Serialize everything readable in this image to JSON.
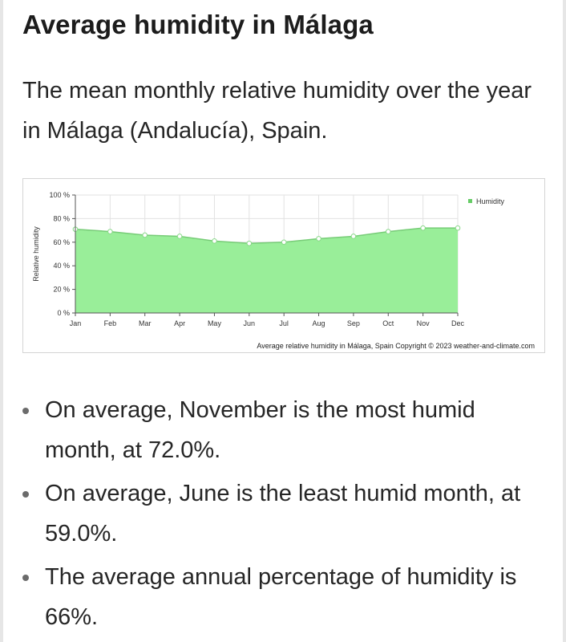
{
  "heading": "Average humidity in Málaga",
  "intro": "The mean monthly relative humidity over the year in Málaga (Andalucía), Spain.",
  "chart_data": {
    "type": "area",
    "categories": [
      "Jan",
      "Feb",
      "Mar",
      "Apr",
      "May",
      "Jun",
      "Jul",
      "Aug",
      "Sep",
      "Oct",
      "Nov",
      "Dec"
    ],
    "series": [
      {
        "name": "Humidity",
        "values": [
          71,
          69,
          66,
          65,
          61,
          59,
          60,
          63,
          65,
          69,
          72,
          72
        ]
      }
    ],
    "ylabel": "Relative humidity",
    "ylim": [
      0,
      100
    ],
    "yticks": [
      "0 %",
      "20 %",
      "40 %",
      "60 %",
      "80 %",
      "100 %"
    ],
    "grid": true,
    "legend": "top-right",
    "caption": "Average relative humidity in Málaga, Spain   Copyright © 2023  weather-and-climate.com",
    "colors": {
      "fill": "#99ee99",
      "line": "#77cc77",
      "marker_fill": "#ffffff",
      "marker_stroke": "#88d888",
      "legend_swatch": "#66cc66"
    }
  },
  "facts": [
    "On average, November is the most humid month, at 72.0%.",
    "On average, June is the least humid month, at 59.0%.",
    "The average annual percentage of humidity is 66%."
  ]
}
